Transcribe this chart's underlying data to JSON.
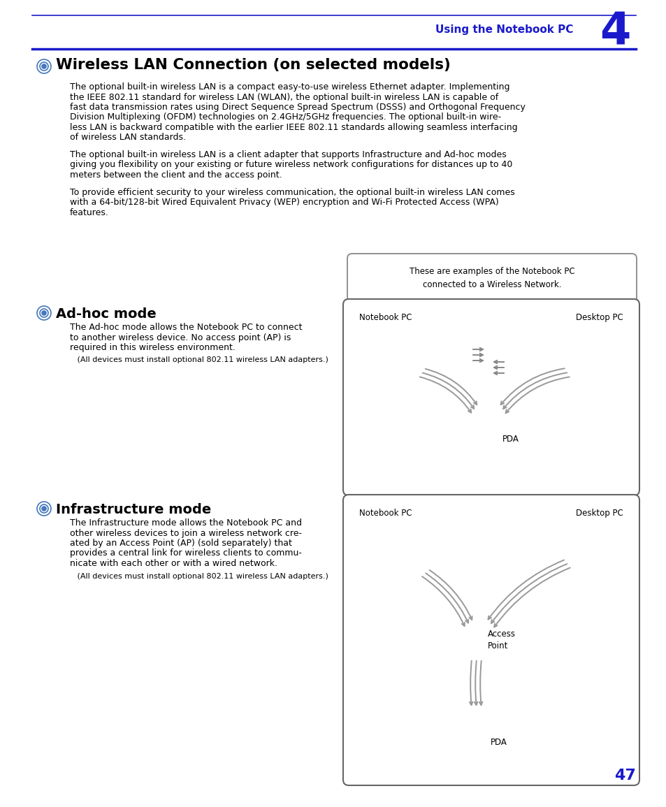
{
  "page_bg": "#ffffff",
  "header_color": "#1a1acc",
  "header_text": "Using the Notebook PC",
  "header_number": "4",
  "title": "Wireless LAN Connection (on selected models)",
  "page_number": "47",
  "para1_lines": [
    "The optional built-in wireless LAN is a compact easy-to-use wireless Ethernet adapter. Implementing",
    "the IEEE 802.11 standard for wireless LAN (WLAN), the optional built-in wireless LAN is capable of",
    "fast data transmission rates using Direct Sequence Spread Spectrum (DSSS) and Orthogonal Frequency",
    "Division Multiplexing (OFDM) technologies on 2.4GHz/5GHz frequencies. The optional built-in wire-",
    "less LAN is backward compatible with the earlier IEEE 802.11 standards allowing seamless interfacing",
    "of wireless LAN standards."
  ],
  "para2_lines": [
    "The optional built-in wireless LAN is a client adapter that supports Infrastructure and Ad-hoc modes",
    "giving you flexibility on your existing or future wireless network configurations for distances up to 40",
    "meters between the client and the access point."
  ],
  "para3_lines": [
    "To provide efficient security to your wireless communication, the optional built-in wireless LAN comes",
    "with a 64-bit/128-bit Wired Equivalent Privacy (WEP) encryption and Wi-Fi Protected Access (WPA)",
    "features."
  ],
  "callout_text": "These are examples of the Notebook PC\nconnected to a Wireless Network.",
  "adhoc_title": "Ad-hoc mode",
  "adhoc_body_lines": [
    "The Ad-hoc mode allows the Notebook PC to connect",
    "to another wireless device. No access point (AP) is",
    "required in this wireless environment."
  ],
  "adhoc_note": "   (All devices must install optional 802.11 wireless LAN adapters.)",
  "infra_title": "Infrastructure mode",
  "infra_body_lines": [
    "The Infrastructure mode allows the Notebook PC and",
    "other wireless devices to join a wireless network cre-",
    "ated by an Access Point (AP) (sold separately) that",
    "provides a central link for wireless clients to commu-",
    "nicate with each other or with a wired network."
  ],
  "infra_note": "   (All devices must install optional 802.11 wireless LAN adapters.)"
}
